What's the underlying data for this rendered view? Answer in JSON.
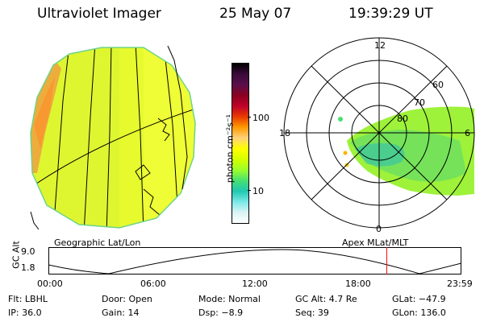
{
  "header": {
    "instrument": "Ultraviolet Imager",
    "date": "25 May 07",
    "time": "19:39:29 UT"
  },
  "colorbar": {
    "unit_label": "photon cm⁻²s⁻¹",
    "tick_upper": "100",
    "tick_lower": "10",
    "colors": [
      "#000000",
      "#3a0a3a",
      "#5a0f4a",
      "#8b0020",
      "#c0002a",
      "#e83a00",
      "#ff9a00",
      "#ffd27a",
      "#ffff00",
      "#d6ff00",
      "#9cff2a",
      "#47e070",
      "#20c8b0",
      "#7ae8e8",
      "#d8f4f4",
      "#ffffff"
    ]
  },
  "polar": {
    "mlt_top": "12",
    "mlt_bottom": "0",
    "mlt_left": "18",
    "mlt_right": "6",
    "lat_labels": [
      "60",
      "70",
      "80"
    ]
  },
  "panels": {
    "left_caption": "Geographic Lat/Lon",
    "right_caption": "Apex MLat/MLT"
  },
  "altitude_plot": {
    "axis_label": "GC Alt",
    "y_top": "9.0",
    "y_bottom": "1.8",
    "time_ticks": [
      "00:00",
      "06:00",
      "12:00",
      "18:00",
      "23:59"
    ],
    "current_time_hours": 19.66
  },
  "info": {
    "flt": "Flt: LBHL",
    "door": "Door: Open",
    "mode": "Mode: Normal",
    "gc_alt": "GC Alt: 4.7 Re",
    "glat": "GLat: −47.9",
    "ip": "IP: 36.0",
    "gain": "Gain: 14",
    "dsp": "Dsp:    −8.9",
    "seq": "Seq: 39",
    "glon": "GLon: 136.0"
  }
}
